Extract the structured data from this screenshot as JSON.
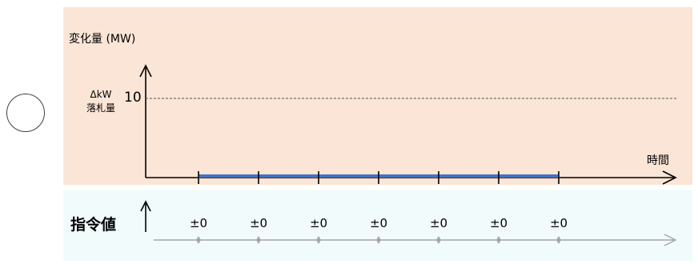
{
  "diagram": {
    "y_axis_label": "変化量 (MW)",
    "bid_label_line1": "ΔkW",
    "bid_label_line2": "落札量",
    "bid_value": "10",
    "x_axis_label": "時間",
    "command_label": "指令値",
    "command_values": [
      "±0",
      "±0",
      "±0",
      "±0",
      "±0",
      "±0",
      "±0"
    ],
    "colors": {
      "upper_panel": "#fbe5d6",
      "lower_panel": "#f2fbfc",
      "change_line": "#4472c4",
      "axis": "#000000",
      "command_axis": "#a6a6a6"
    },
    "icons": [
      "circle-mark-icon"
    ]
  }
}
